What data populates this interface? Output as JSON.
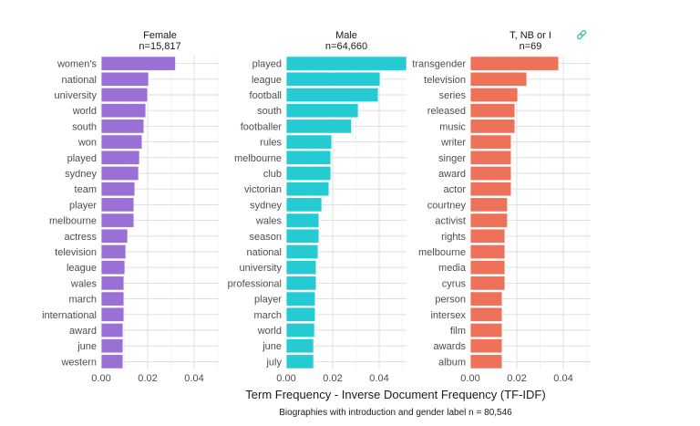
{
  "chart_data": {
    "type": "bar",
    "orientation": "horizontal",
    "xlabel": "Term Frequency - Inverse Document Frequency (TF-IDF)",
    "caption": "Biographies with introduction and gender label n = 80,546",
    "xlim": [
      0,
      0.052
    ],
    "xticks": [
      0.0,
      0.02,
      0.04
    ],
    "xtick_labels": [
      "0.00",
      "0.02",
      "0.04"
    ],
    "grid": true,
    "legend": "none",
    "link_icon": "link-icon",
    "panels": [
      {
        "title": "Female",
        "subtitle": "n=15,817",
        "color": "#9a6fd6",
        "categories": [
          "women's",
          "national",
          "university",
          "world",
          "south",
          "won",
          "played",
          "sydney",
          "team",
          "player",
          "melbourne",
          "actress",
          "television",
          "league",
          "wales",
          "march",
          "international",
          "award",
          "june",
          "western"
        ],
        "values": [
          0.032,
          0.0204,
          0.02,
          0.0192,
          0.0184,
          0.0176,
          0.0165,
          0.0161,
          0.0145,
          0.0141,
          0.0141,
          0.0114,
          0.0106,
          0.0102,
          0.0098,
          0.0098,
          0.0098,
          0.0094,
          0.0094,
          0.0094
        ]
      },
      {
        "title": "Male",
        "subtitle": "n=64,660",
        "color": "#25cbd2",
        "categories": [
          "played",
          "league",
          "football",
          "south",
          "footballer",
          "rules",
          "melbourne",
          "club",
          "victorian",
          "sydney",
          "wales",
          "season",
          "national",
          "university",
          "professional",
          "player",
          "march",
          "world",
          "june",
          "july"
        ],
        "values": [
          0.0518,
          0.0404,
          0.0396,
          0.031,
          0.028,
          0.0196,
          0.0192,
          0.0192,
          0.0184,
          0.0153,
          0.0141,
          0.0141,
          0.0137,
          0.0129,
          0.0129,
          0.0125,
          0.0125,
          0.0122,
          0.0118,
          0.0118
        ]
      },
      {
        "title": "T, NB or I",
        "subtitle": "n=69",
        "color": "#ee7259",
        "categories": [
          "transgender",
          "television",
          "series",
          "released",
          "music",
          "writer",
          "singer",
          "award",
          "actor",
          "courtney",
          "activist",
          "rights",
          "melbourne",
          "media",
          "cyrus",
          "person",
          "intersex",
          "film",
          "awards",
          "album"
        ],
        "values": [
          0.038,
          0.0243,
          0.0204,
          0.0192,
          0.0192,
          0.0176,
          0.0176,
          0.0176,
          0.0176,
          0.016,
          0.016,
          0.0149,
          0.0149,
          0.0149,
          0.0149,
          0.0137,
          0.0137,
          0.0137,
          0.0137,
          0.0137
        ]
      }
    ]
  }
}
